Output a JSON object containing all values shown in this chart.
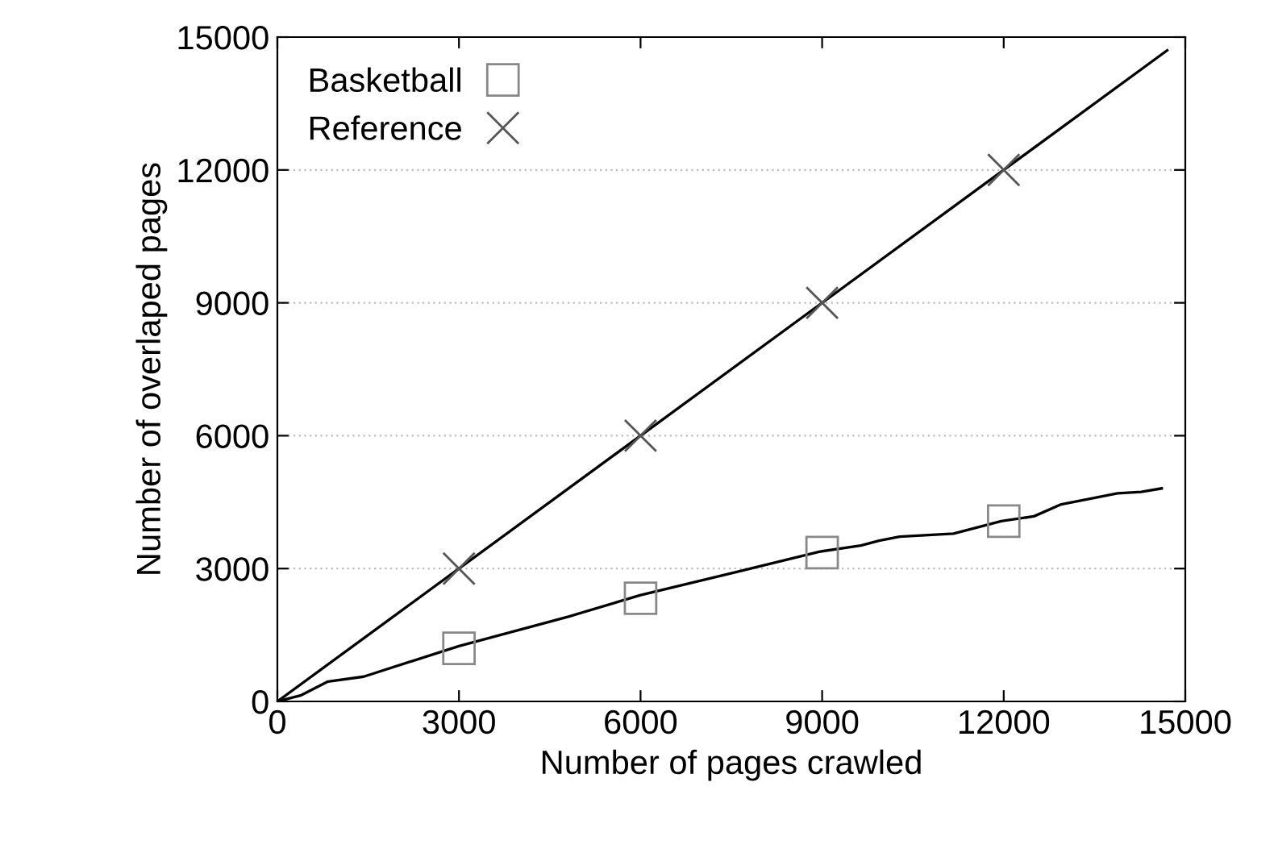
{
  "chart_data": {
    "type": "line",
    "xlabel": "Number of pages crawled",
    "ylabel": "Number of overlaped pages",
    "xlim": [
      0,
      15000
    ],
    "ylim": [
      0,
      15000
    ],
    "xticks": [
      0,
      3000,
      6000,
      9000,
      12000,
      15000
    ],
    "yticks": [
      0,
      3000,
      6000,
      9000,
      12000,
      15000
    ],
    "grid": "y",
    "legend": "top left",
    "series": [
      {
        "color": "#000000",
        "x": [
          0,
          394,
          836,
          1427,
          3000,
          4820,
          6000,
          7575,
          8950,
          9640,
          9940,
          10280,
          11170,
          11960,
          12500,
          12950,
          13880,
          14270,
          14610
        ],
        "values": [
          0,
          140,
          450,
          560,
          1250,
          1920,
          2400,
          2920,
          3380,
          3520,
          3630,
          3720,
          3790,
          4070,
          4180,
          4450,
          4700,
          4730,
          4810
        ]
      },
      {
        "color": "#000000",
        "x": [
          0,
          14700
        ],
        "values": [
          0,
          14700
        ]
      },
      {
        "type": "scatter",
        "name": "Basketball",
        "color": "#888888",
        "marker": "square",
        "x": [
          3000,
          6000,
          9000,
          12000
        ],
        "values": [
          1200,
          2330,
          3360,
          4070
        ]
      },
      {
        "type": "scatter",
        "name": "Reference",
        "color": "#555555",
        "marker": "cross",
        "x": [
          3000,
          6000,
          9000,
          12000
        ],
        "values": [
          3000,
          6000,
          9000,
          12000
        ]
      }
    ]
  }
}
